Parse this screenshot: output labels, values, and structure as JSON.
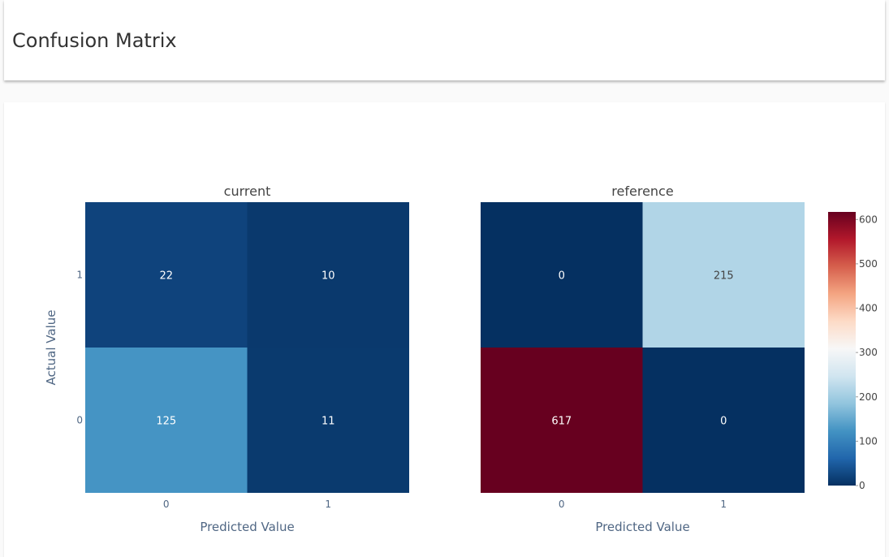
{
  "page": {
    "title": "Confusion Matrix"
  },
  "chart_data": {
    "type": "heatmap",
    "colorscale": [
      "#053061",
      "#2166ac",
      "#4393c3",
      "#92c5de",
      "#d1e5f0",
      "#f7f7f7",
      "#fddbc7",
      "#f4a582",
      "#d6604d",
      "#b2182b",
      "#67001f"
    ],
    "zmin": 0,
    "zmax": 617,
    "colorbar": {
      "ticks": [
        0,
        100,
        200,
        300,
        400,
        500,
        600
      ],
      "position": "right"
    },
    "ylabel": "Actual Value",
    "panels": [
      {
        "name": "current",
        "xlabel": "Predicted Value",
        "x": [
          "0",
          "1"
        ],
        "y": [
          "0",
          "1"
        ],
        "z": [
          [
            125,
            11
          ],
          [
            22,
            10
          ]
        ]
      },
      {
        "name": "reference",
        "xlabel": "Predicted Value",
        "x": [
          "0",
          "1"
        ],
        "y": [
          "0",
          "1"
        ],
        "z": [
          [
            617,
            0
          ],
          [
            0,
            215
          ]
        ]
      }
    ]
  }
}
